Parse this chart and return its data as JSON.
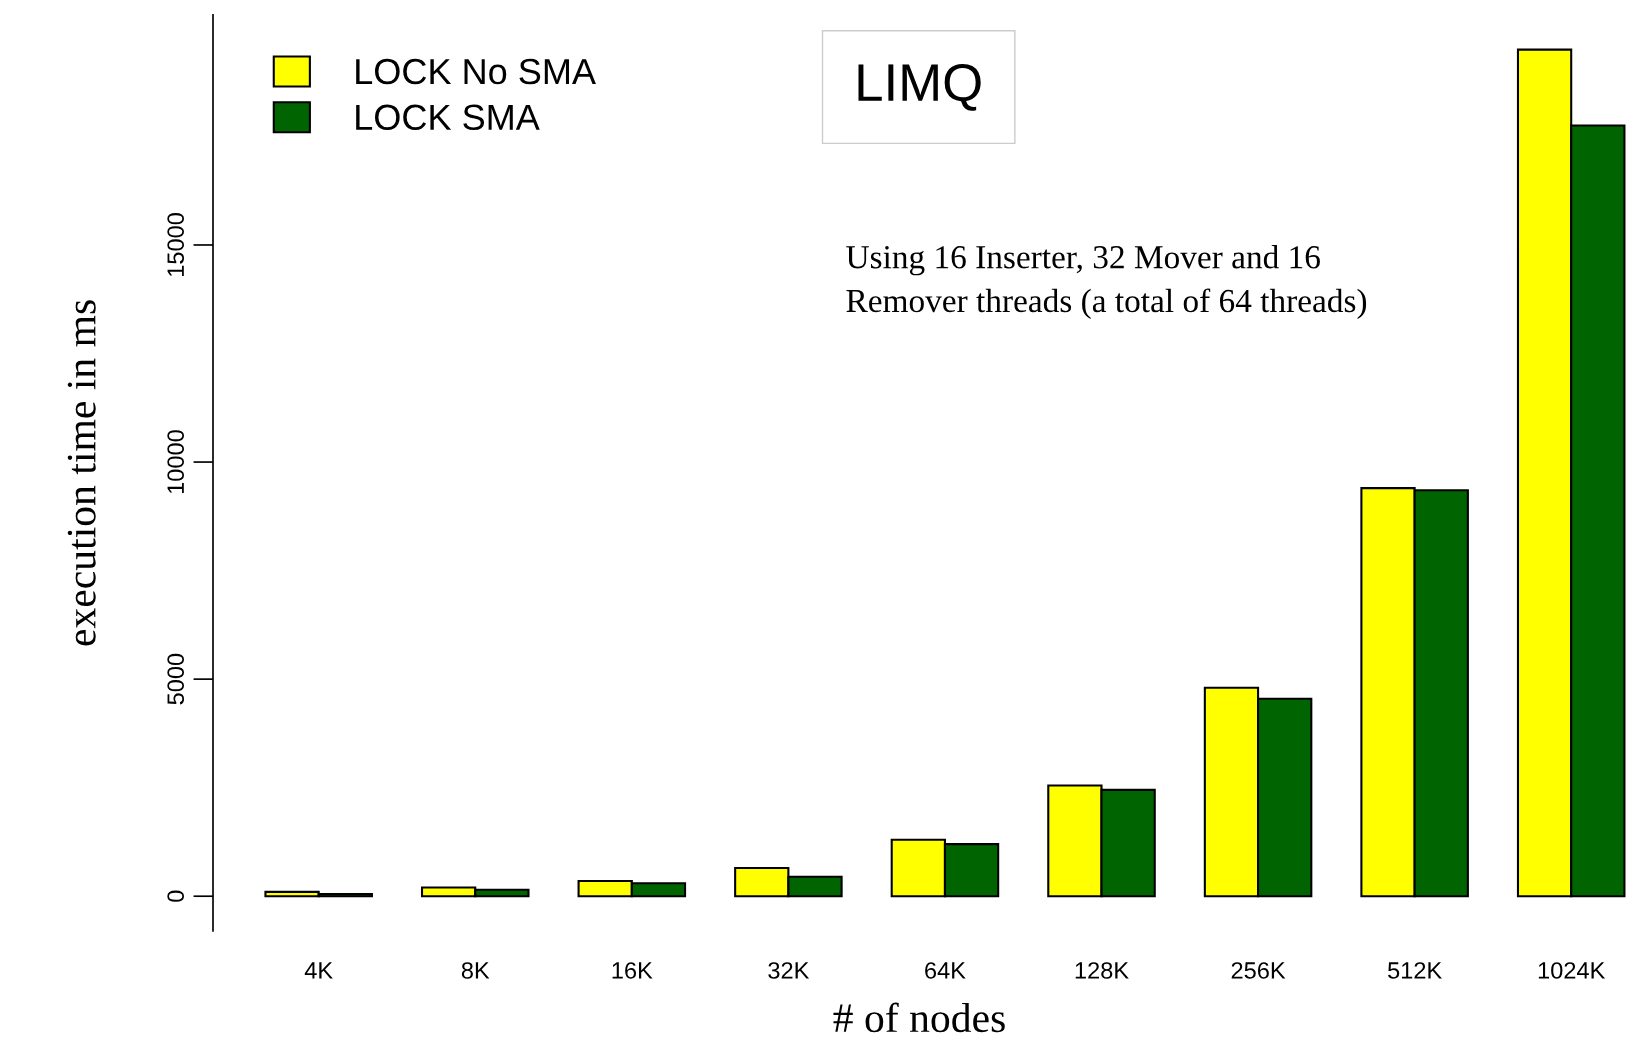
{
  "chart_data": {
    "type": "bar",
    "title": "LIMQ",
    "xlabel": "# of nodes",
    "ylabel": "execution time in ms",
    "annotations": [
      "Using 16 Inserter, 32 Mover and 16",
      "Remover threads (a total of 64 threads)"
    ],
    "categories": [
      "4K",
      "8K",
      "16K",
      "32K",
      "64K",
      "128K",
      "256K",
      "512K",
      "1024K"
    ],
    "series": [
      {
        "name": "LOCK No SMA",
        "color": "#ffff00",
        "values": [
          100,
          200,
          350,
          650,
          1300,
          2550,
          4800,
          9400,
          19500
        ]
      },
      {
        "name": "LOCK SMA",
        "color": "#006400",
        "values": [
          50,
          150,
          300,
          450,
          1200,
          2450,
          4550,
          9350,
          17750
        ]
      }
    ],
    "ylim": [
      -800,
      20300
    ],
    "yticks": [
      0,
      5000,
      10000,
      15000
    ],
    "grid": false,
    "legend": "top left"
  }
}
